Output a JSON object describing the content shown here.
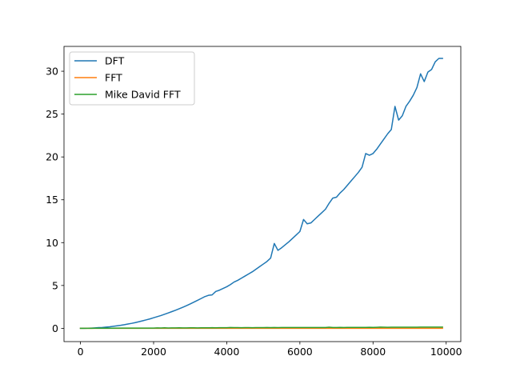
{
  "chart_data": {
    "type": "line",
    "title": "",
    "xlabel": "",
    "ylabel": "",
    "xlim": [
      -450,
      10400
    ],
    "ylim": [
      -1.55,
      32.9
    ],
    "xticks": [
      0,
      2000,
      4000,
      6000,
      8000,
      10000
    ],
    "yticks": [
      0,
      5,
      10,
      15,
      20,
      25,
      30
    ],
    "grid": false,
    "legend_position": "upper-left",
    "x": [
      0,
      100,
      200,
      300,
      400,
      500,
      600,
      700,
      800,
      900,
      1000,
      1100,
      1200,
      1300,
      1400,
      1500,
      1600,
      1700,
      1800,
      1900,
      2000,
      2100,
      2200,
      2300,
      2400,
      2500,
      2600,
      2700,
      2800,
      2900,
      3000,
      3100,
      3200,
      3300,
      3400,
      3500,
      3600,
      3700,
      3800,
      3900,
      4000,
      4100,
      4200,
      4300,
      4400,
      4500,
      4600,
      4700,
      4800,
      4900,
      5000,
      5100,
      5200,
      5300,
      5400,
      5500,
      5600,
      5700,
      5800,
      5900,
      6000,
      6100,
      6200,
      6300,
      6400,
      6500,
      6600,
      6700,
      6800,
      6900,
      7000,
      7100,
      7200,
      7300,
      7400,
      7500,
      7600,
      7700,
      7800,
      7900,
      8000,
      8100,
      8200,
      8300,
      8400,
      8500,
      8600,
      8700,
      8800,
      8900,
      9000,
      9100,
      9200,
      9300,
      9400,
      9500,
      9600,
      9700,
      9800,
      9900
    ],
    "series": [
      {
        "name": "DFT",
        "color": "#1f77b4",
        "values": [
          0.0,
          0.0,
          0.01,
          0.03,
          0.05,
          0.08,
          0.1,
          0.14,
          0.18,
          0.23,
          0.29,
          0.35,
          0.42,
          0.5,
          0.58,
          0.67,
          0.77,
          0.88,
          0.99,
          1.1,
          1.23,
          1.36,
          1.49,
          1.64,
          1.79,
          1.95,
          2.11,
          2.28,
          2.46,
          2.65,
          2.84,
          3.05,
          3.26,
          3.48,
          3.7,
          3.85,
          3.9,
          4.3,
          4.45,
          4.65,
          4.85,
          5.1,
          5.4,
          5.6,
          5.85,
          6.1,
          6.35,
          6.6,
          6.9,
          7.2,
          7.5,
          7.8,
          8.2,
          9.9,
          9.1,
          9.4,
          9.75,
          10.1,
          10.5,
          10.9,
          11.3,
          12.7,
          12.2,
          12.3,
          12.7,
          13.1,
          13.5,
          13.9,
          14.6,
          15.2,
          15.3,
          15.8,
          16.2,
          16.7,
          17.2,
          17.7,
          18.2,
          18.8,
          20.4,
          20.2,
          20.4,
          20.9,
          21.5,
          22.1,
          22.7,
          23.2,
          25.9,
          24.3,
          24.8,
          25.9,
          26.5,
          27.2,
          28.1,
          29.7,
          28.8,
          29.9,
          30.2,
          31.1,
          31.5,
          31.5
        ],
        "values_note": ""
      },
      {
        "name": "FFT",
        "color": "#ff7f0e",
        "values": [
          0.0,
          0.0,
          0.0,
          0.0,
          0.0,
          0.0,
          0.0,
          0.0,
          0.0,
          0.0,
          0.0,
          0.0,
          0.0,
          0.0,
          0.0,
          0.0,
          0.0,
          0.0,
          0.0,
          0.0,
          0.0,
          0.0,
          0.0,
          0.0,
          0.0,
          0.0,
          0.0,
          0.0,
          0.0,
          0.0,
          0.0,
          0.0,
          0.0,
          0.0,
          0.0,
          0.0,
          0.0,
          0.0,
          0.0,
          0.0,
          0.0,
          0.0,
          0.0,
          0.0,
          0.0,
          0.0,
          0.0,
          0.0,
          0.0,
          0.0,
          0.0,
          0.0,
          0.0,
          0.0,
          0.0,
          0.0,
          0.0,
          0.0,
          0.0,
          0.0,
          0.0,
          0.0,
          0.0,
          0.0,
          0.0,
          0.0,
          0.0,
          0.0,
          0.0,
          0.0,
          0.0,
          0.0,
          0.0,
          0.0,
          0.0,
          0.0,
          0.0,
          0.0,
          0.0,
          0.0,
          0.0,
          0.0,
          0.0,
          0.0,
          0.0,
          0.0,
          0.0,
          0.0,
          0.0,
          0.0,
          0.0,
          0.0,
          0.0,
          0.0,
          0.0,
          0.0,
          0.0,
          0.0,
          0.0,
          0.0
        ]
      },
      {
        "name": "Mike David FFT",
        "color": "#2ca02c",
        "values": [
          0.0,
          0.0,
          0.0,
          0.0,
          0.01,
          0.01,
          0.01,
          0.01,
          0.01,
          0.01,
          0.02,
          0.02,
          0.02,
          0.02,
          0.02,
          0.02,
          0.03,
          0.02,
          0.03,
          0.03,
          0.03,
          0.05,
          0.04,
          0.06,
          0.04,
          0.05,
          0.05,
          0.06,
          0.05,
          0.05,
          0.06,
          0.06,
          0.05,
          0.06,
          0.06,
          0.06,
          0.07,
          0.06,
          0.07,
          0.07,
          0.07,
          0.09,
          0.08,
          0.08,
          0.07,
          0.08,
          0.08,
          0.07,
          0.08,
          0.08,
          0.08,
          0.09,
          0.08,
          0.09,
          0.08,
          0.09,
          0.09,
          0.09,
          0.09,
          0.1,
          0.09,
          0.1,
          0.09,
          0.1,
          0.1,
          0.1,
          0.1,
          0.1,
          0.13,
          0.1,
          0.1,
          0.11,
          0.1,
          0.11,
          0.11,
          0.11,
          0.11,
          0.11,
          0.11,
          0.12,
          0.11,
          0.12,
          0.14,
          0.13,
          0.12,
          0.13,
          0.13,
          0.13,
          0.13,
          0.13,
          0.13,
          0.13,
          0.13,
          0.14,
          0.14,
          0.14,
          0.14,
          0.14,
          0.14,
          0.14
        ]
      }
    ]
  }
}
